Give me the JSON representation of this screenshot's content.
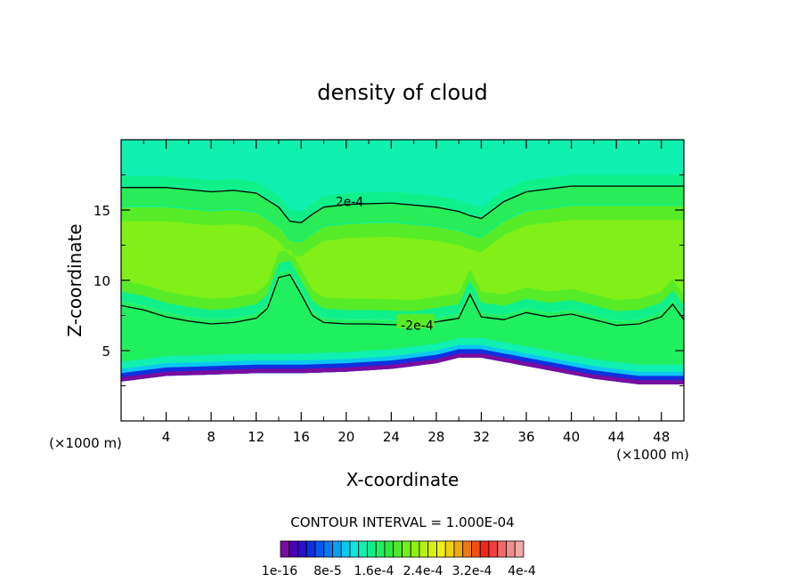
{
  "chart_data": {
    "type": "heatmap",
    "title": "density of cloud",
    "xlabel": "X-coordinate",
    "ylabel": "Z-coordinate",
    "x_unit": "(×1000 m)",
    "z_unit": "(×1000 m)",
    "xlim": [
      0,
      50
    ],
    "ylim": [
      0,
      20
    ],
    "x_ticks": [
      4,
      8,
      12,
      16,
      20,
      24,
      28,
      32,
      36,
      40,
      44,
      48
    ],
    "y_ticks": [
      5,
      10,
      15
    ],
    "contour_interval_text": "CONTOUR INTERVAL = 1.000E-04",
    "contour_labels": [
      "2e-4",
      "2e-4"
    ],
    "colorbar": {
      "labels": [
        "1e-16",
        "8e-5",
        "1.6e-4",
        "2.4e-4",
        "3.2e-4",
        "4e-4"
      ],
      "colors": [
        "#7a0ca0",
        "#4a00b0",
        "#2a10c8",
        "#1030e0",
        "#0a56f0",
        "#0a78f0",
        "#0aa0f0",
        "#0ac8f0",
        "#0ae8e0",
        "#10f0b0",
        "#10f08a",
        "#20f060",
        "#30e840",
        "#50e830",
        "#70f020",
        "#90f010",
        "#b8f010",
        "#d8f010",
        "#f0f010",
        "#f0d010",
        "#f0a810",
        "#f07a10",
        "#f05010",
        "#f02818",
        "#f04040",
        "#f06a6a",
        "#f08e8e",
        "#f0aaaa"
      ]
    },
    "cloud_top_contour_2e-4": {
      "x": [
        0,
        4,
        8,
        10,
        12,
        14,
        15,
        16,
        17,
        18,
        20,
        24,
        28,
        30,
        31,
        32,
        34,
        36,
        40,
        44,
        48,
        50
      ],
      "z": [
        16.6,
        16.6,
        16.3,
        16.4,
        16.2,
        15.2,
        14.2,
        14.1,
        14.7,
        15.2,
        15.4,
        15.5,
        15.2,
        14.9,
        14.6,
        14.4,
        15.6,
        16.3,
        16.7,
        16.7,
        16.7,
        16.7
      ]
    },
    "cloud_base_contour_2e-4": {
      "x": [
        0,
        2,
        4,
        6,
        8,
        10,
        12,
        13,
        14,
        15,
        16,
        17,
        18,
        20,
        22,
        26,
        30,
        31,
        32,
        34,
        36,
        38,
        40,
        42,
        44,
        46,
        48,
        49,
        50
      ],
      "z": [
        8.2,
        7.9,
        7.4,
        7.1,
        6.9,
        7.0,
        7.3,
        8.0,
        10.2,
        10.4,
        9.0,
        7.5,
        7.0,
        6.9,
        6.9,
        6.8,
        7.3,
        9.0,
        7.4,
        7.2,
        7.7,
        7.4,
        7.6,
        7.2,
        6.8,
        6.9,
        7.4,
        8.3,
        7.2
      ]
    },
    "cloud_bottom_edge": {
      "x": [
        0,
        4,
        8,
        12,
        16,
        20,
        24,
        28,
        30,
        32,
        34,
        38,
        42,
        46,
        50
      ],
      "z": [
        2.8,
        3.2,
        3.3,
        3.4,
        3.4,
        3.5,
        3.7,
        4.1,
        4.5,
        4.5,
        4.2,
        3.6,
        3.0,
        2.6,
        2.6
      ]
    }
  }
}
